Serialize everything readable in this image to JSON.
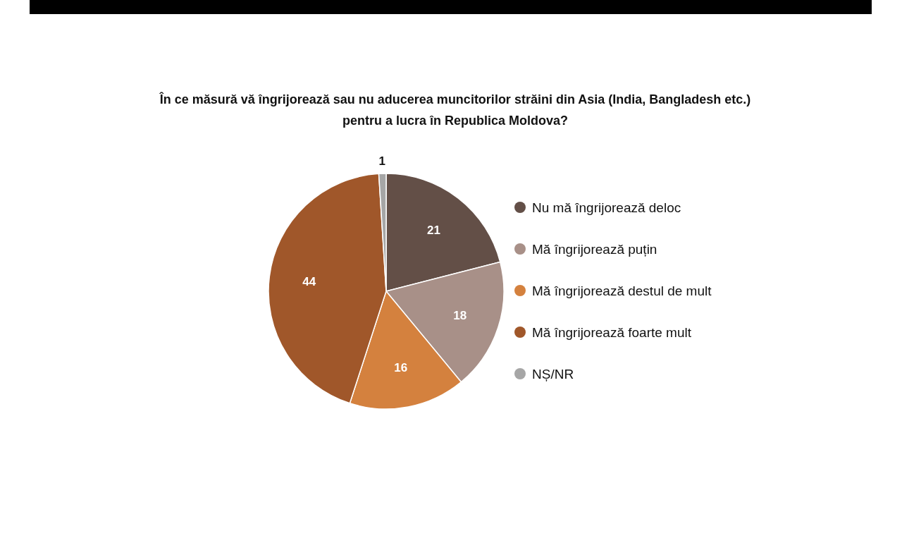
{
  "chart_data": {
    "type": "pie",
    "title": "În ce măsură vă îngrijorează sau nu aducerea muncitorilor străini din Asia (India, Bangladesh etc.)\npentru a lucra în Republica Moldova?",
    "categories": [
      "Nu mă îngrijorează deloc",
      "Mă îngrijorează puțin",
      "Mă îngrijorează destul de mult",
      "Mă îngrijorează foarte mult",
      "NȘ/NR"
    ],
    "values": [
      21,
      18,
      16,
      44,
      1
    ],
    "colors": [
      "#634f47",
      "#a89088",
      "#d4813e",
      "#a0572a",
      "#a6a6a6"
    ],
    "data_labels": true,
    "legend": "right"
  }
}
